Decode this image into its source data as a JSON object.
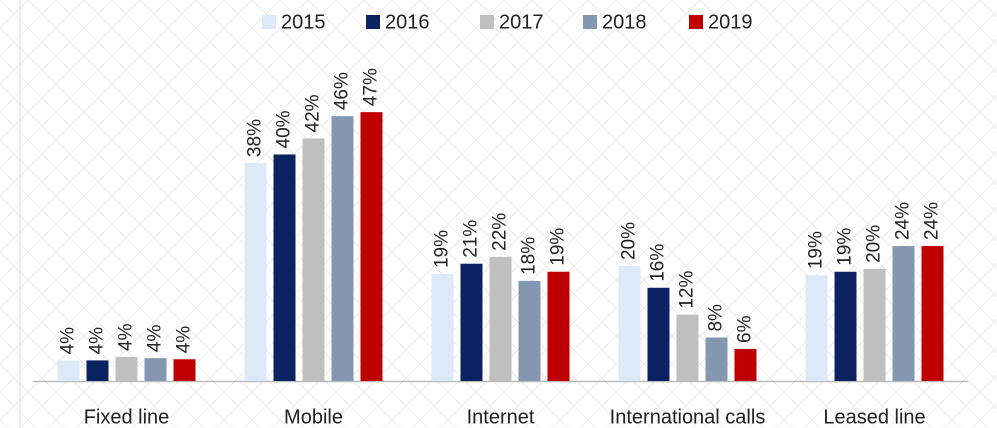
{
  "chart_data": {
    "type": "bar",
    "categories": [
      "Fixed line",
      "Mobile",
      "Internet",
      "International calls",
      "Leased line"
    ],
    "series": [
      {
        "name": "2015",
        "color": "#dce9f8",
        "values": [
          3.6,
          38.1,
          18.7,
          20.1,
          18.5
        ],
        "value_labels": [
          "4%",
          "38%",
          "19%",
          "20%",
          "19%"
        ]
      },
      {
        "name": "2016",
        "color": "#0b2461",
        "values": [
          3.6,
          39.6,
          20.5,
          16.3,
          19.1
        ],
        "value_labels": [
          "4%",
          "40%",
          "21%",
          "16%",
          "19%"
        ]
      },
      {
        "name": "2017",
        "color": "#bfbfbf",
        "values": [
          4.2,
          42.4,
          21.7,
          11.6,
          19.6
        ],
        "value_labels": [
          "4%",
          "42%",
          "22%",
          "12%",
          "20%"
        ]
      },
      {
        "name": "2018",
        "color": "#8497b0",
        "values": [
          4.0,
          46.3,
          17.5,
          7.6,
          23.6
        ],
        "value_labels": [
          "4%",
          "46%",
          "18%",
          "8%",
          "24%"
        ]
      },
      {
        "name": "2019",
        "color": "#c00000",
        "values": [
          3.8,
          47.0,
          19.1,
          5.6,
          23.6
        ],
        "value_labels": [
          "4%",
          "47%",
          "19%",
          "6%",
          "24%"
        ]
      }
    ],
    "legend": "top"
  }
}
